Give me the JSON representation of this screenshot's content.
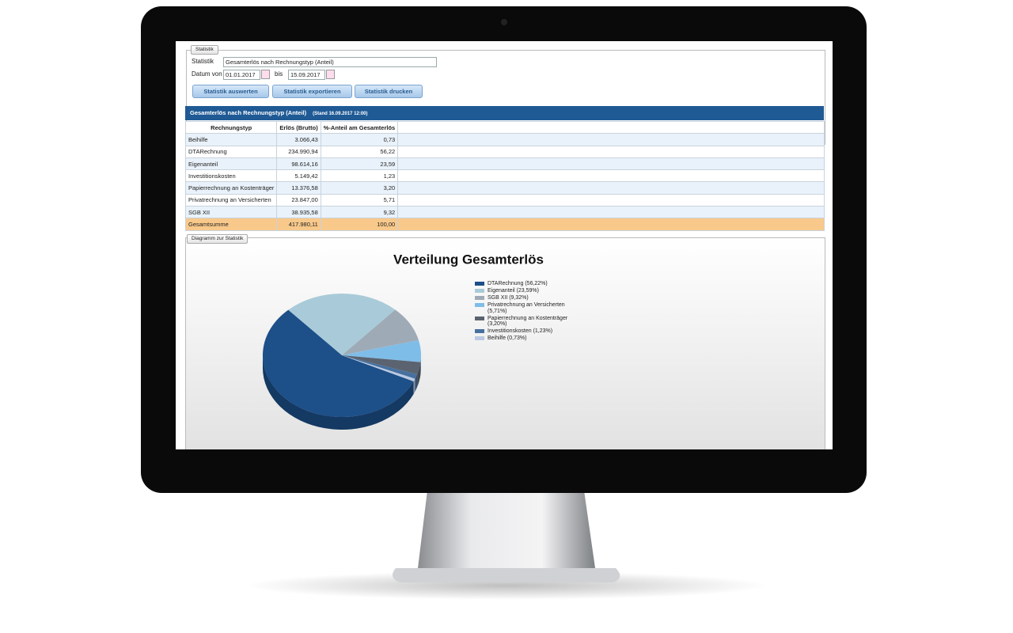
{
  "form": {
    "legend": "Statistik",
    "statistik_label": "Statistik",
    "statistik_value": "Gesamterlös nach Rechnungstyp (Anteil)",
    "datum_label": "Datum von",
    "from": "01.01.2017",
    "bis_label": "bis",
    "to": "15.09.2017",
    "buttons": [
      "Statistik auswerten",
      "Statistik exportieren",
      "Statistik drucken"
    ]
  },
  "table": {
    "title": "Gesamterlös nach Rechnungstyp (Anteil)",
    "stand": "(Stand 16.09.2017 12:00)",
    "columns": [
      "Rechnungstyp",
      "Erlös (Brutto)",
      "%-Anteil am Gesamterlös"
    ],
    "rows": [
      [
        "Beihilfe",
        "3.066,43",
        "0,73"
      ],
      [
        "DTARechnung",
        "234.990,94",
        "56,22"
      ],
      [
        "Eigenanteil",
        "98.614,16",
        "23,59"
      ],
      [
        "Investitionskosten",
        "5.149,42",
        "1,23"
      ],
      [
        "Papierrechnung an Kostenträger",
        "13.376,58",
        "3,20"
      ],
      [
        "Privatrechnung an Versicherten",
        "23.847,00",
        "5,71"
      ],
      [
        "SGB XII",
        "38.935,58",
        "9,32"
      ]
    ],
    "total": [
      "Gesamtsumme",
      "417.980,11",
      "100,00"
    ]
  },
  "diagram_legend": "Diagramm zur Statistik",
  "chart_data": {
    "type": "pie",
    "title": "Verteilung Gesamterlös",
    "categories": [
      "DTARechnung (56,22%)",
      "Eigenanteil (23,59%)",
      "SGB XII (9,32%)",
      "Privatrechnung an Versicherten (5,71%)",
      "Papierrechnung an Kostenträger (3,20%)",
      "Investitionskosten (1,23%)",
      "Beihilfe (0,73%)"
    ],
    "values": [
      56.22,
      23.59,
      9.32,
      5.71,
      3.2,
      1.23,
      0.73
    ],
    "colors": [
      "#1d4f88",
      "#a9cbd9",
      "#9eabb7",
      "#7fbde9",
      "#5a636f",
      "#47709f",
      "#b9c9e2"
    ]
  }
}
